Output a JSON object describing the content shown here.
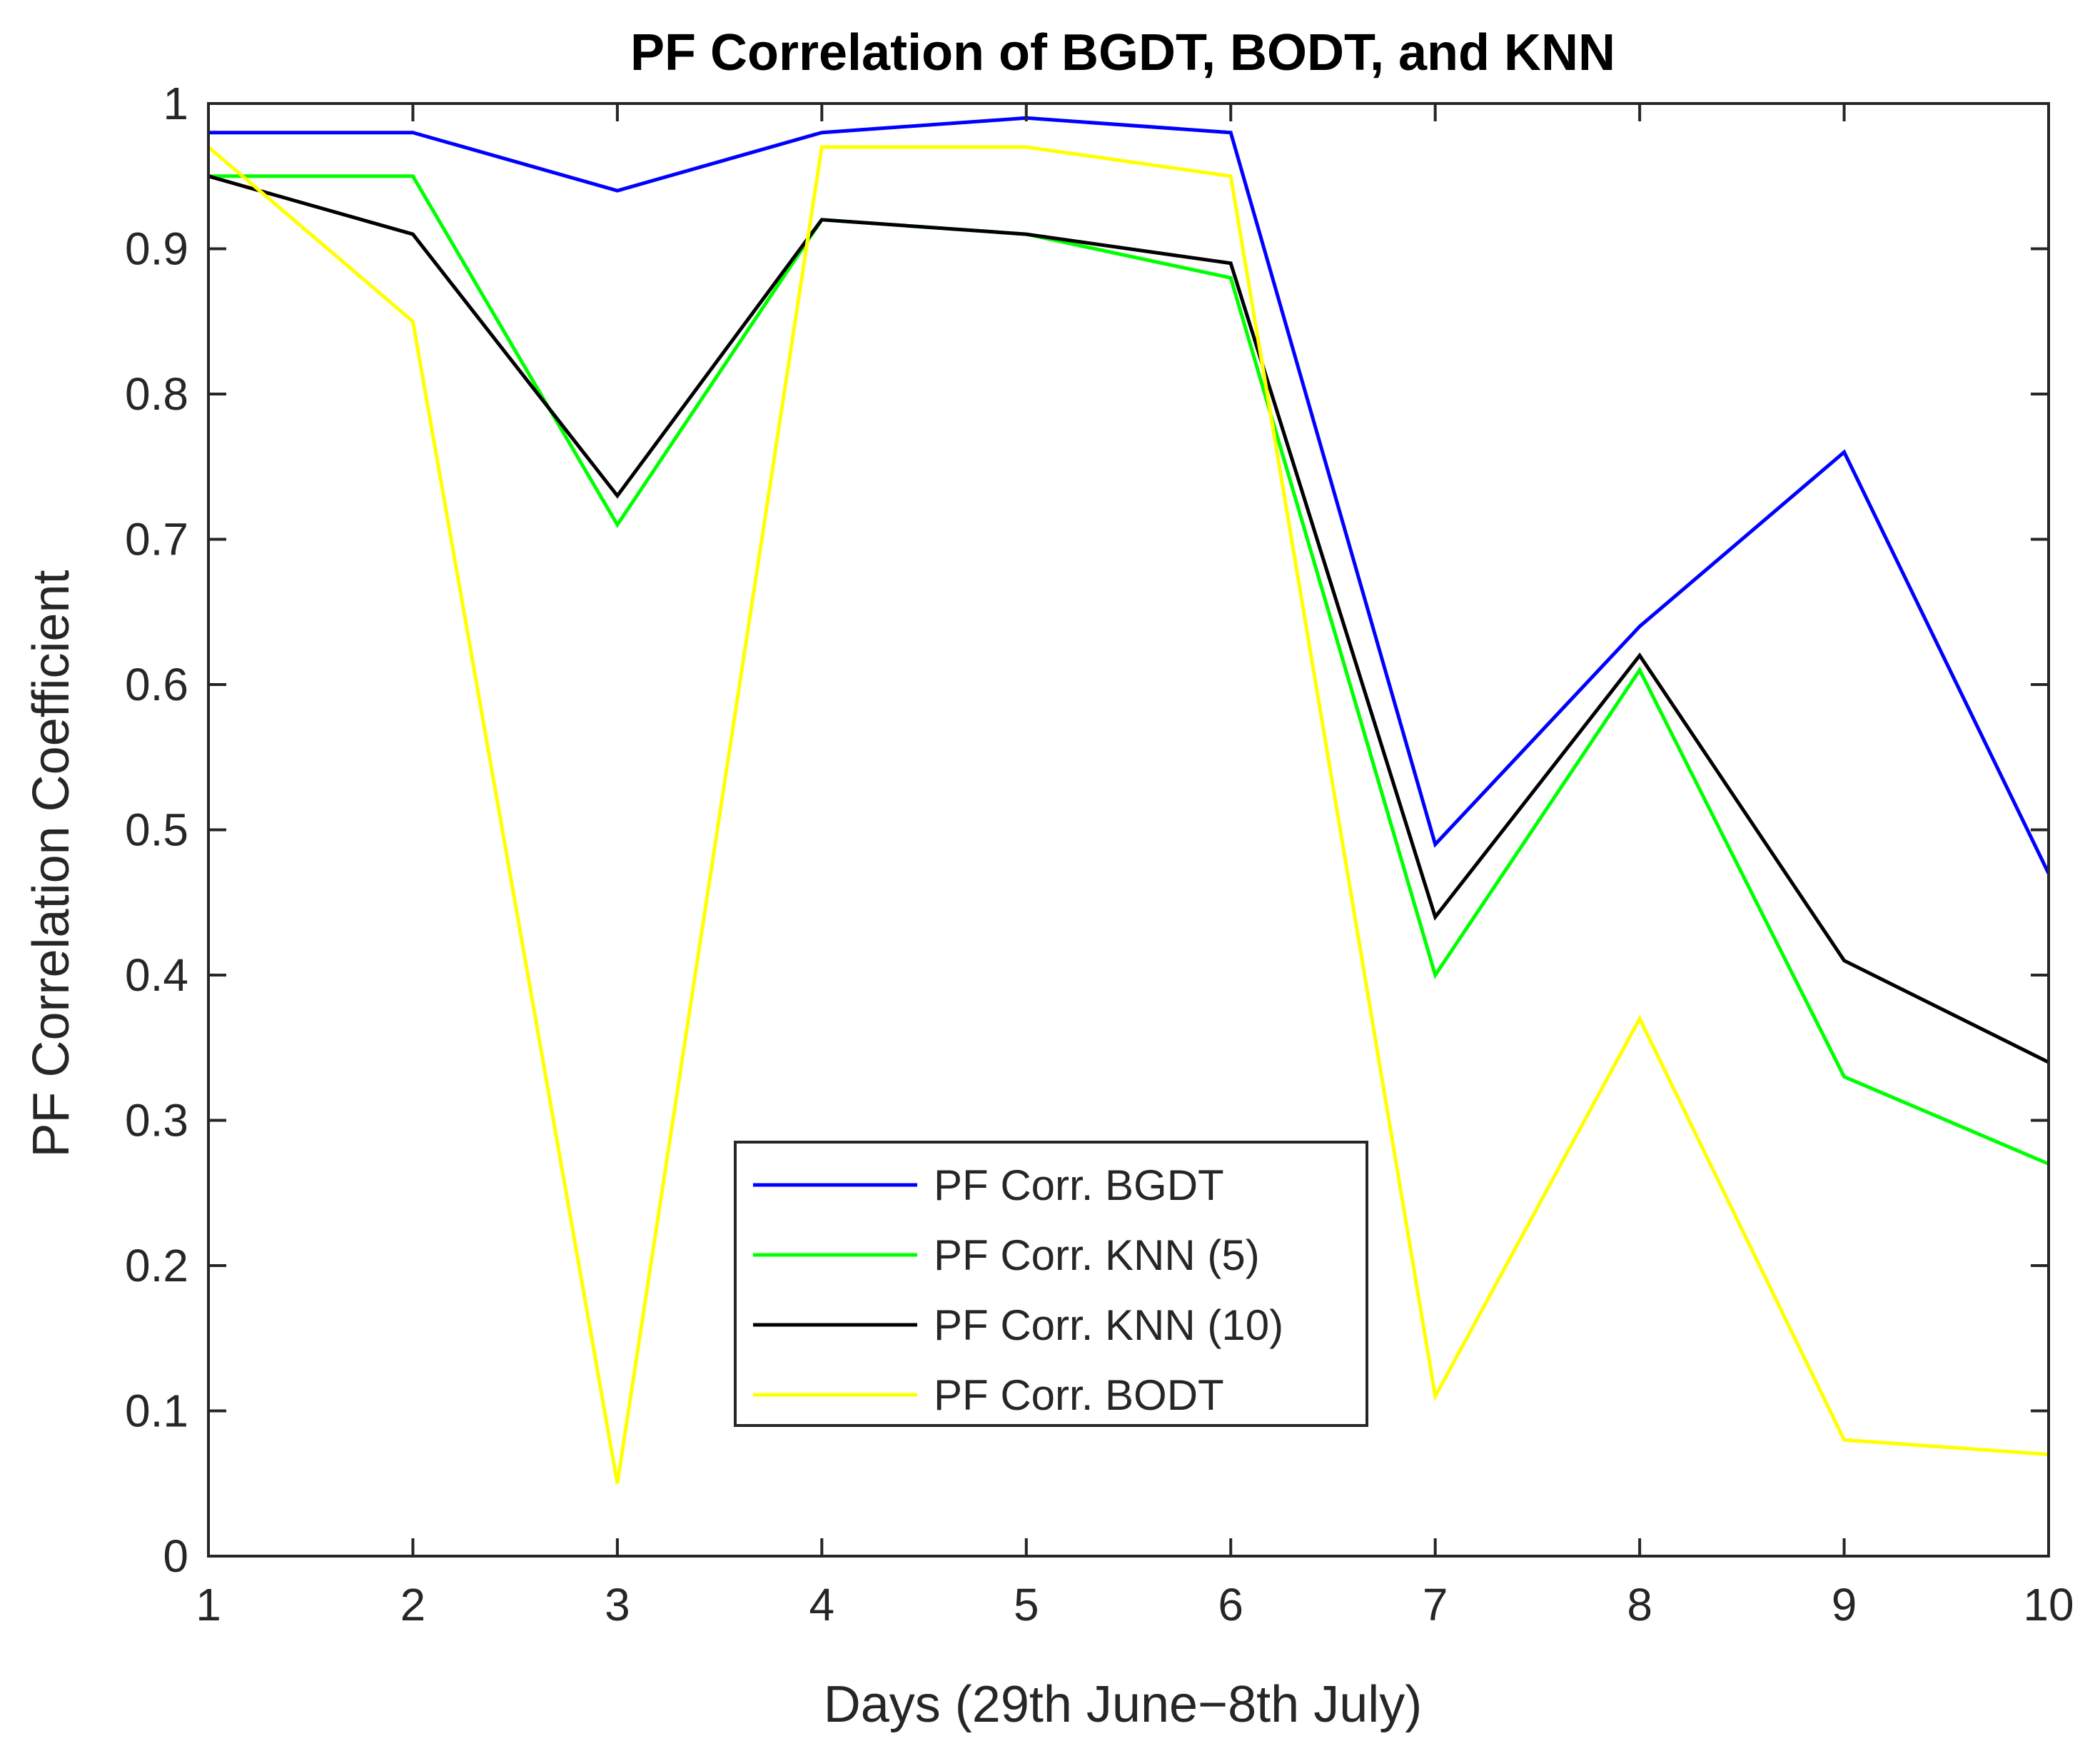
{
  "chart_data": {
    "type": "line",
    "title": "PF Correlation of BGDT, BODT, and KNN",
    "xlabel": "Days (29th June−8th July)",
    "ylabel": "PF Correlation Coefficient",
    "x": [
      1,
      2,
      3,
      4,
      5,
      6,
      7,
      8,
      9,
      10
    ],
    "xlim": [
      1,
      10
    ],
    "ylim": [
      0,
      1
    ],
    "xticks": [
      "1",
      "2",
      "3",
      "4",
      "5",
      "6",
      "7",
      "8",
      "9",
      "10"
    ],
    "yticks": [
      "0",
      "0.1",
      "0.2",
      "0.3",
      "0.4",
      "0.5",
      "0.6",
      "0.7",
      "0.8",
      "0.9",
      "1"
    ],
    "grid": false,
    "legend_position": "bottom-center",
    "series": [
      {
        "name": "PF Corr. BGDT",
        "color": "#0000ff",
        "values": [
          0.98,
          0.98,
          0.94,
          0.98,
          0.99,
          0.98,
          0.49,
          0.64,
          0.76,
          0.47
        ]
      },
      {
        "name": "PF Corr. KNN (5)",
        "color": "#00ff00",
        "values": [
          0.95,
          0.95,
          0.71,
          0.92,
          0.91,
          0.88,
          0.4,
          0.61,
          0.33,
          0.27
        ]
      },
      {
        "name": "PF Corr. KNN (10)",
        "color": "#000000",
        "values": [
          0.95,
          0.91,
          0.73,
          0.92,
          0.91,
          0.89,
          0.44,
          0.62,
          0.41,
          0.34
        ]
      },
      {
        "name": "PF Corr. BODT",
        "color": "#ffff00",
        "values": [
          0.97,
          0.85,
          0.05,
          0.97,
          0.97,
          0.95,
          0.11,
          0.37,
          0.08,
          0.07
        ]
      }
    ]
  }
}
